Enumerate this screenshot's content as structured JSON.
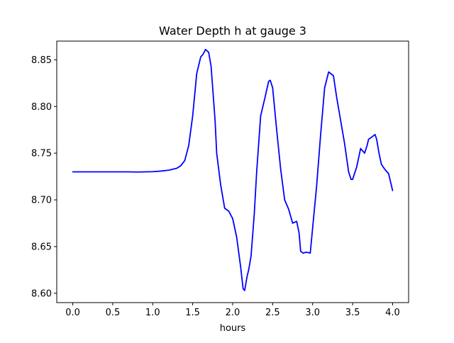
{
  "chart_data": {
    "type": "line",
    "title": "Water Depth h at gauge 3",
    "xlabel": "hours",
    "ylabel": "",
    "xlim": [
      -0.2,
      4.2
    ],
    "ylim": [
      8.59,
      8.87
    ],
    "xticks": [
      0.0,
      0.5,
      1.0,
      1.5,
      2.0,
      2.5,
      3.0,
      3.5,
      4.0
    ],
    "xtick_labels": [
      "0.0",
      "0.5",
      "1.0",
      "1.5",
      "2.0",
      "2.5",
      "3.0",
      "3.5",
      "4.0"
    ],
    "yticks": [
      8.6,
      8.65,
      8.7,
      8.75,
      8.8,
      8.85
    ],
    "ytick_labels": [
      "8.60",
      "8.65",
      "8.70",
      "8.75",
      "8.80",
      "8.85"
    ],
    "grid": false,
    "legend": "none",
    "series": [
      {
        "color": "#0000ff",
        "x": [
          0.0,
          0.5,
          0.7,
          0.8,
          1.0,
          1.1,
          1.2,
          1.3,
          1.35,
          1.4,
          1.45,
          1.5,
          1.55,
          1.6,
          1.63,
          1.66,
          1.7,
          1.73,
          1.75,
          1.78,
          1.8,
          1.85,
          1.9,
          1.95,
          2.0,
          2.05,
          2.1,
          2.13,
          2.15,
          2.18,
          2.2,
          2.23,
          2.27,
          2.3,
          2.35,
          2.4,
          2.45,
          2.47,
          2.5,
          2.55,
          2.6,
          2.65,
          2.7,
          2.75,
          2.8,
          2.83,
          2.85,
          2.88,
          2.92,
          2.97,
          3.0,
          3.05,
          3.1,
          3.15,
          3.2,
          3.23,
          3.26,
          3.3,
          3.35,
          3.4,
          3.43,
          3.45,
          3.48,
          3.5,
          3.55,
          3.6,
          3.63,
          3.65,
          3.68,
          3.7,
          3.72,
          3.75,
          3.78,
          3.8,
          3.83,
          3.86,
          3.9,
          3.95,
          4.0
        ],
        "y": [
          8.73,
          8.73,
          8.73,
          8.7298,
          8.7302,
          8.7308,
          8.7318,
          8.7338,
          8.7365,
          8.742,
          8.758,
          8.79,
          8.835,
          8.853,
          8.856,
          8.861,
          8.858,
          8.843,
          8.82,
          8.785,
          8.75,
          8.716,
          8.691,
          8.688,
          8.68,
          8.66,
          8.628,
          8.605,
          8.603,
          8.618,
          8.625,
          8.64,
          8.685,
          8.73,
          8.79,
          8.808,
          8.827,
          8.828,
          8.82,
          8.775,
          8.733,
          8.7,
          8.69,
          8.675,
          8.677,
          8.665,
          8.645,
          8.643,
          8.644,
          8.643,
          8.67,
          8.715,
          8.77,
          8.82,
          8.837,
          8.835,
          8.833,
          8.81,
          8.785,
          8.76,
          8.742,
          8.73,
          8.722,
          8.722,
          8.735,
          8.755,
          8.752,
          8.75,
          8.758,
          8.765,
          8.766,
          8.768,
          8.77,
          8.765,
          8.75,
          8.738,
          8.733,
          8.728,
          8.71
        ]
      }
    ]
  }
}
